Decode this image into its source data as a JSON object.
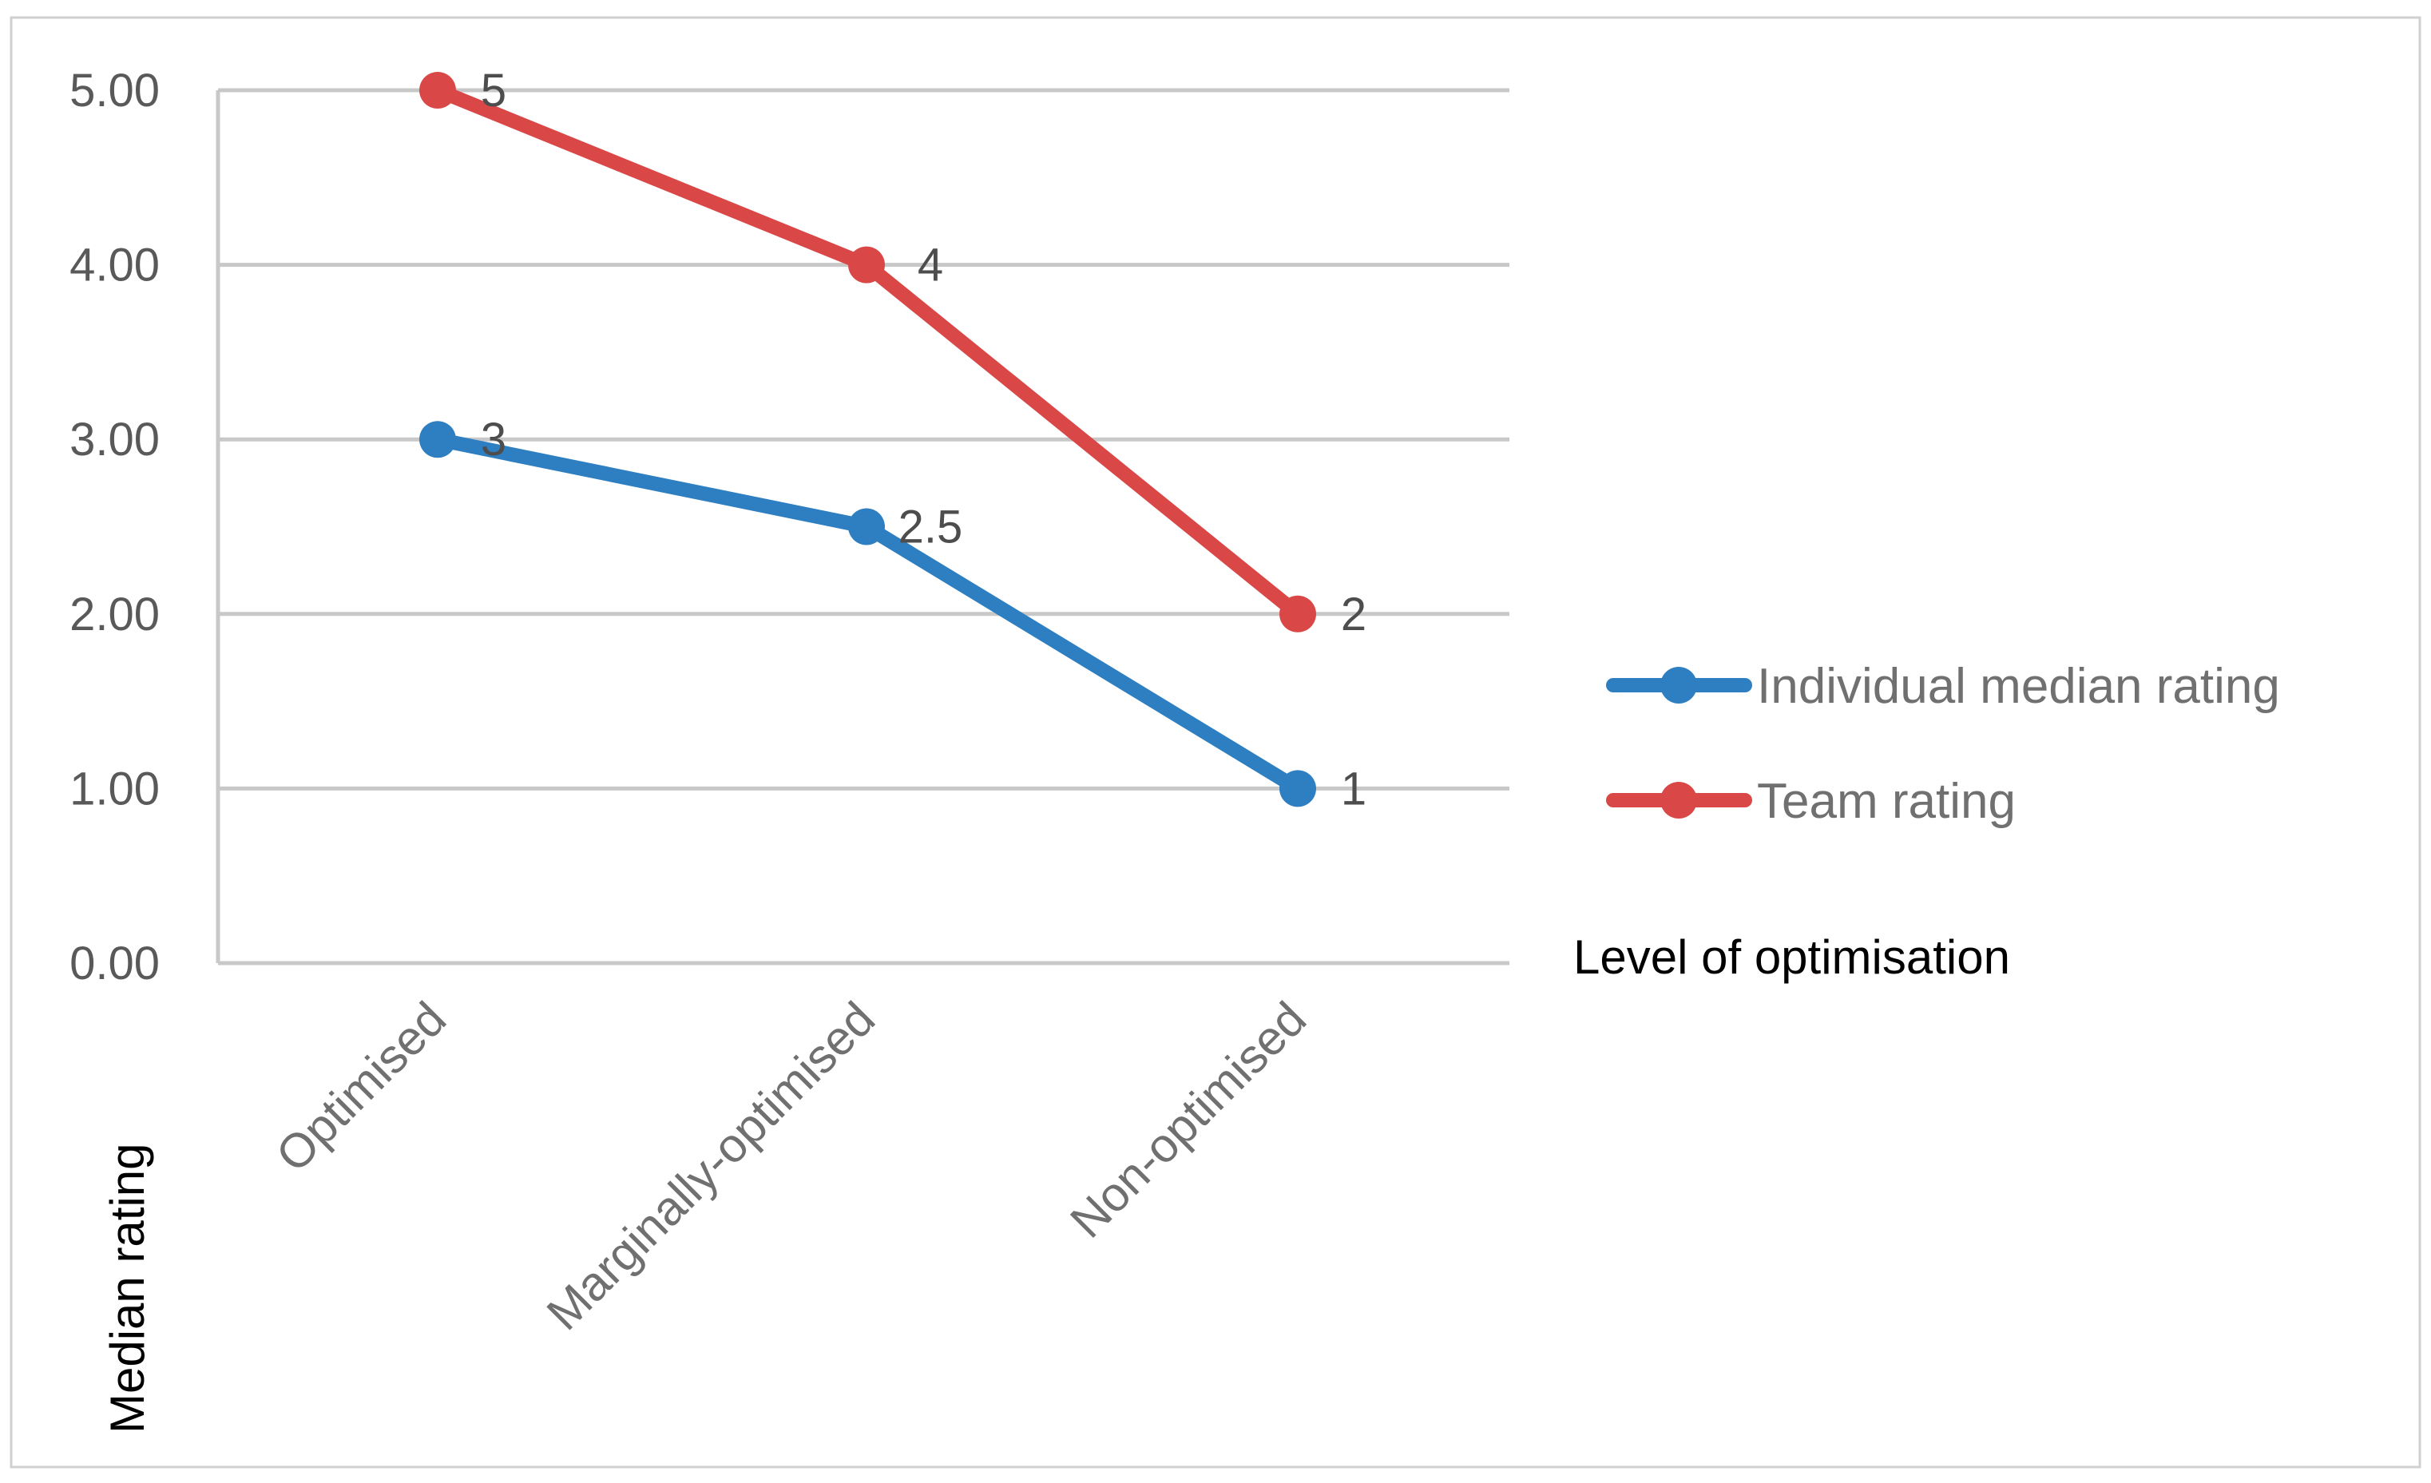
{
  "chart_data": {
    "type": "line",
    "categories": [
      "Optimised",
      "Marginally-optimised",
      "Non-optimised"
    ],
    "series": [
      {
        "name": "Individual median rating",
        "values": [
          3,
          2.5,
          1
        ],
        "labels": [
          "3",
          "2.5",
          "1"
        ],
        "color": "#2E7FC1"
      },
      {
        "name": "Team rating",
        "values": [
          5,
          4,
          2
        ],
        "labels": [
          "5",
          "4",
          "2"
        ],
        "color": "#D94747"
      }
    ],
    "y_ticks": [
      "0.00",
      "1.00",
      "2.00",
      "3.00",
      "4.00",
      "5.00"
    ],
    "ylim": [
      0,
      5
    ],
    "xlabel": "Level of optimisation",
    "ylabel": "Median rating",
    "grid": true,
    "legend_position": "right"
  }
}
